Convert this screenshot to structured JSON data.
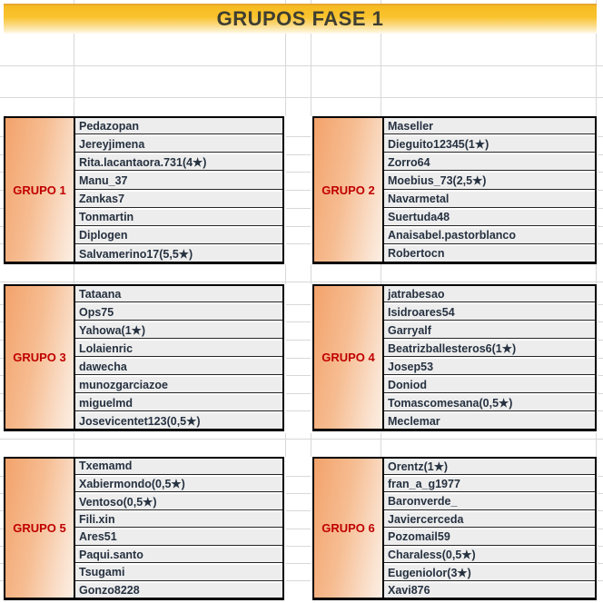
{
  "sheet": {
    "title": "GRUPOS FASE 1"
  },
  "colors": {
    "banner_gold": "#f9c32e",
    "banner_fade": "#fdf2d0",
    "group_label_red": "#c00000",
    "group_label_orange": "#f3a26b",
    "player_cell_bg": "#ededed",
    "player_text": "#263140"
  },
  "groups": [
    {
      "label": "GRUPO 1",
      "players": [
        "Pedazopan",
        "Jereyjimena",
        "Rita.lacantaora.731(4★)",
        "Manu_37",
        "Zankas7",
        "Tonmartin",
        "Diplogen",
        "Salvamerino17(5,5★)"
      ]
    },
    {
      "label": "GRUPO 2",
      "players": [
        "Maseller",
        "Dieguito12345(1★)",
        "Zorro64",
        "Moebius_73(2,5★)",
        "Navarmetal",
        "Suertuda48",
        "Anaisabel.pastorblanco",
        "Robertocn"
      ]
    },
    {
      "label": "GRUPO 3",
      "players": [
        "Tataana",
        "Ops75",
        "Yahowa(1★)",
        "Lolaienric",
        "dawecha",
        "munozgarciazoe",
        "miguelmd",
        "Josevicentet123(0,5★)"
      ]
    },
    {
      "label": "GRUPO 4",
      "players": [
        "jatrabesao",
        "Isidroares54",
        "Garryalf",
        "Beatrizballesteros6(1★)",
        "Josep53",
        "Doniod",
        "Tomascomesana(0,5★)",
        "Meclemar"
      ]
    },
    {
      "label": "GRUPO 5",
      "players": [
        "Txemamd",
        "Xabiermondo(0,5★)",
        "Ventoso(0,5★)",
        "Fili.xin",
        "Ares51",
        "Paqui.santo",
        "Tsugami",
        "Gonzo8228"
      ]
    },
    {
      "label": "GRUPO 6",
      "players": [
        "Orentz(1★)",
        "fran_a_g1977",
        "Baronverde_",
        "Javiercerceda",
        "Pozomail59",
        "Charaless(0,5★)",
        "Eugeniolor(3★)",
        "Xavi876"
      ]
    }
  ]
}
